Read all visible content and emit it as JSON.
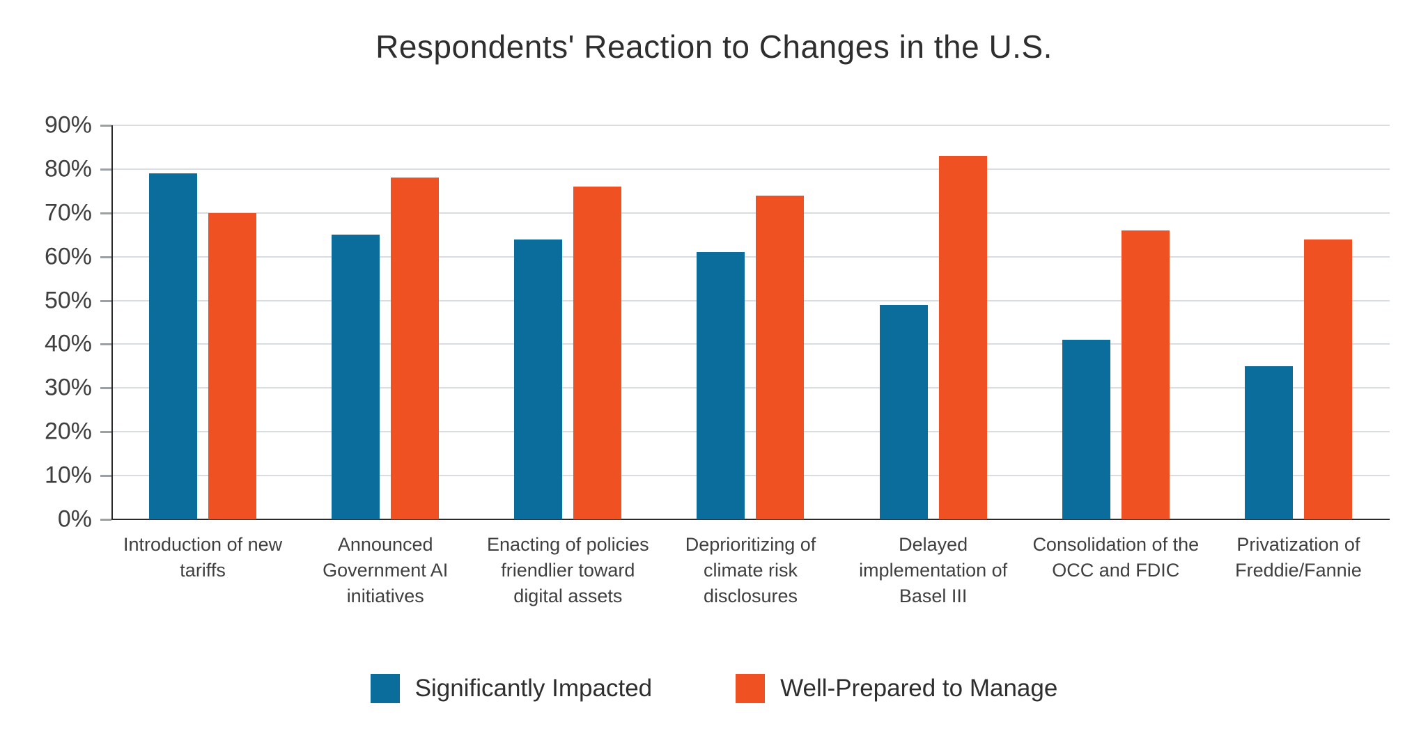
{
  "title": "Respondents' Reaction to Changes in the U.S.",
  "colors": {
    "significantly_impacted": "#0a6d9c",
    "well_prepared": "#f05123",
    "gridline": "#d9dde1",
    "axis": "#2b2b2b",
    "tick": "#9aa0a4",
    "text": "#3f3f3f"
  },
  "y_axis": {
    "ticks": [
      {
        "value": 0,
        "label": "0%"
      },
      {
        "value": 10,
        "label": "10%"
      },
      {
        "value": 20,
        "label": "20%"
      },
      {
        "value": 30,
        "label": "30%"
      },
      {
        "value": 40,
        "label": "40%"
      },
      {
        "value": 50,
        "label": "50%"
      },
      {
        "value": 60,
        "label": "60%"
      },
      {
        "value": 70,
        "label": "70%"
      },
      {
        "value": 80,
        "label": "80%"
      },
      {
        "value": 90,
        "label": "90%"
      }
    ]
  },
  "legend": [
    {
      "label": "Significantly Impacted",
      "color": "#0a6d9c"
    },
    {
      "label": "Well-Prepared to Manage",
      "color": "#f05123"
    }
  ],
  "chart_data": {
    "type": "bar",
    "title": "Respondents' Reaction to Changes in the U.S.",
    "categories": [
      "Introduction of new tariffs",
      "Announced Government AI initiatives",
      "Enacting of policies friendlier toward digital assets",
      "Deprioritizing of climate risk disclosures",
      "Delayed implementation of Basel III",
      "Consolidation of the OCC and FDIC",
      "Privatization of Freddie/Fannie"
    ],
    "series": [
      {
        "name": "Significantly Impacted",
        "color": "#0a6d9c",
        "values": [
          79,
          65,
          64,
          61,
          49,
          41,
          35
        ]
      },
      {
        "name": "Well-Prepared to Manage",
        "color": "#f05123",
        "values": [
          70,
          78,
          76,
          74,
          83,
          66,
          64
        ]
      }
    ],
    "xlabel": "",
    "ylabel": "",
    "ylim": [
      0,
      90
    ],
    "grid": true,
    "legend_position": "bottom"
  }
}
